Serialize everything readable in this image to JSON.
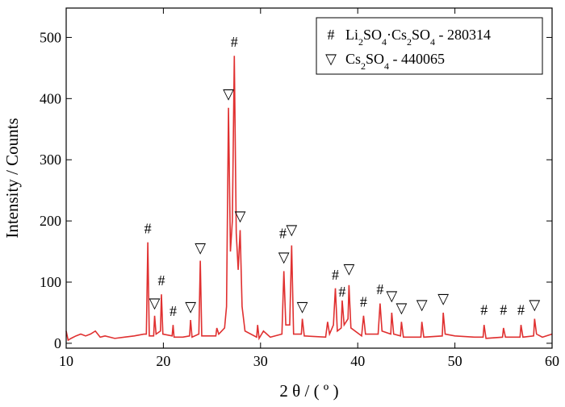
{
  "chart_data": {
    "type": "line",
    "xlabel": "2 θ / ( º )",
    "ylabel": "Intensity / Counts",
    "xlim": [
      10,
      60
    ],
    "xticks": [
      10,
      20,
      30,
      40,
      50,
      60
    ],
    "ylim": [
      -8,
      548
    ],
    "yticks": [
      0,
      100,
      200,
      300,
      400,
      500
    ],
    "series": [
      {
        "color": "#e03030",
        "x": [
          10,
          10.2,
          10.5,
          11,
          11.5,
          12,
          12.5,
          13,
          13.5,
          14,
          15,
          16,
          17,
          18,
          18.25,
          18.4,
          18.55,
          19.0,
          19.1,
          19.25,
          19.7,
          19.8,
          19.95,
          20.9,
          21.0,
          21.1,
          22,
          22.7,
          22.8,
          22.95,
          23.65,
          23.8,
          23.95,
          25.4,
          25.5,
          25.7,
          26.3,
          26.5,
          26.7,
          26.9,
          27.1,
          27.3,
          27.5,
          27.7,
          27.9,
          28.1,
          28.4,
          29.6,
          29.7,
          29.85,
          30.3,
          31,
          32.2,
          32.4,
          32.6,
          33.0,
          33.2,
          33.4,
          34.2,
          34.3,
          34.5,
          36.7,
          36.9,
          37.1,
          37.5,
          37.7,
          37.9,
          38.3,
          38.4,
          38.6,
          39.0,
          39.1,
          39.3,
          40.4,
          40.6,
          40.8,
          42.1,
          42.3,
          42.5,
          43.4,
          43.5,
          43.7,
          44.4,
          44.5,
          44.7,
          46.5,
          46.6,
          46.8,
          48.7,
          48.8,
          49,
          50,
          52,
          52.9,
          53.0,
          53.2,
          54.9,
          55.0,
          55.2,
          56.7,
          56.8,
          57,
          58.1,
          58.2,
          58.4,
          59,
          60
        ],
        "values": [
          20,
          5,
          8,
          12,
          15,
          12,
          15,
          20,
          10,
          12,
          8,
          10,
          12,
          15,
          15,
          165,
          12,
          12,
          45,
          15,
          20,
          80,
          15,
          12,
          30,
          10,
          10,
          12,
          38,
          10,
          15,
          135,
          12,
          12,
          25,
          15,
          25,
          60,
          385,
          150,
          200,
          470,
          180,
          120,
          185,
          60,
          20,
          10,
          30,
          8,
          20,
          10,
          15,
          118,
          30,
          30,
          160,
          15,
          15,
          40,
          12,
          10,
          35,
          15,
          30,
          90,
          20,
          25,
          70,
          30,
          40,
          95,
          25,
          12,
          45,
          15,
          15,
          65,
          20,
          15,
          50,
          15,
          12,
          35,
          10,
          10,
          35,
          10,
          12,
          50,
          15,
          12,
          10,
          10,
          30,
          8,
          10,
          25,
          10,
          10,
          30,
          10,
          12,
          40,
          15,
          10,
          15
        ]
      }
    ],
    "annotations": [
      {
        "text": "#",
        "x": 18.4,
        "y": 180
      },
      {
        "text": "▽",
        "x": 19.1,
        "y": 58
      },
      {
        "text": "#",
        "x": 19.8,
        "y": 95
      },
      {
        "text": "#",
        "x": 21.0,
        "y": 45
      },
      {
        "text": "▽",
        "x": 22.8,
        "y": 52
      },
      {
        "text": "▽",
        "x": 23.8,
        "y": 148
      },
      {
        "text": "▽",
        "x": 26.7,
        "y": 400
      },
      {
        "text": "#",
        "x": 27.3,
        "y": 485
      },
      {
        "text": "▽",
        "x": 27.9,
        "y": 200
      },
      {
        "text": "#",
        "x": 32.3,
        "y": 172
      },
      {
        "text": "▽",
        "x": 32.4,
        "y": 133
      },
      {
        "text": "▽",
        "x": 33.2,
        "y": 178
      },
      {
        "text": "▽",
        "x": 34.3,
        "y": 52
      },
      {
        "text": "#",
        "x": 37.7,
        "y": 104
      },
      {
        "text": "#",
        "x": 38.4,
        "y": 76
      },
      {
        "text": "▽",
        "x": 39.1,
        "y": 114
      },
      {
        "text": "#",
        "x": 40.6,
        "y": 60
      },
      {
        "text": "#",
        "x": 42.3,
        "y": 80
      },
      {
        "text": "▽",
        "x": 43.5,
        "y": 70
      },
      {
        "text": "▽",
        "x": 44.5,
        "y": 50
      },
      {
        "text": "▽",
        "x": 46.6,
        "y": 55
      },
      {
        "text": "▽",
        "x": 48.8,
        "y": 65
      },
      {
        "text": "#",
        "x": 53.0,
        "y": 47
      },
      {
        "text": "#",
        "x": 55.0,
        "y": 47
      },
      {
        "text": "#",
        "x": 56.8,
        "y": 47
      },
      {
        "text": "▽",
        "x": 58.2,
        "y": 55
      }
    ],
    "legend": [
      {
        "symbol": "#",
        "label": "Li2SO4·Cs2SO4 - 280314"
      },
      {
        "symbol": "▽",
        "label": "Cs2SO4 - 440065"
      }
    ],
    "legend_position": "upper right"
  }
}
